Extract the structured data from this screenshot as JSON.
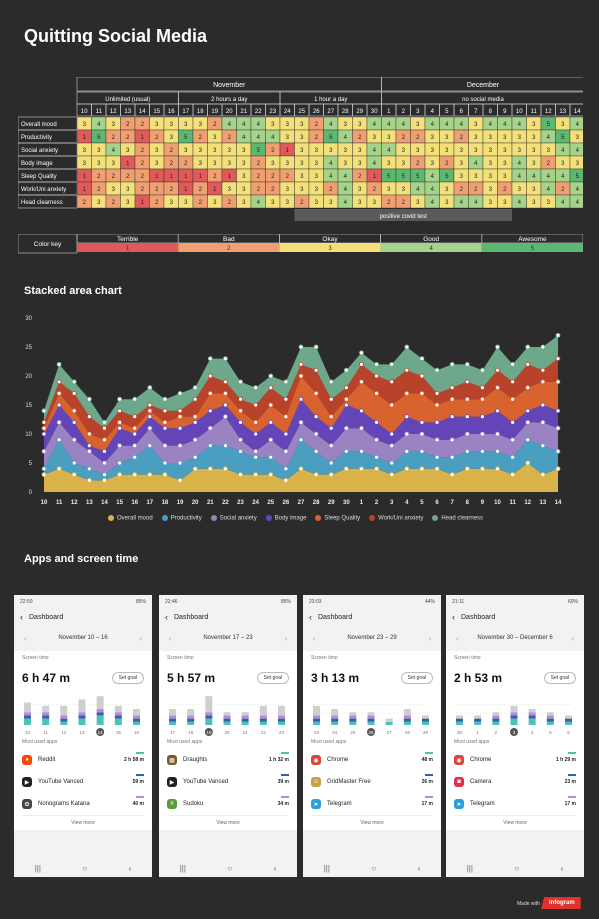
{
  "title": "Quitting Social Media",
  "table": {
    "months": [
      {
        "label": "November",
        "span": 21
      },
      {
        "label": "December",
        "span": 14
      }
    ],
    "periods": [
      {
        "label": "Unlimited (usual)",
        "span": 7
      },
      {
        "label": "2 hours a day",
        "span": 7
      },
      {
        "label": "1 hour a day",
        "span": 7
      },
      {
        "label": "no social media",
        "span": 14
      }
    ],
    "days": [
      "10",
      "11",
      "12",
      "13",
      "14",
      "15",
      "16",
      "17",
      "18",
      "19",
      "20",
      "21",
      "22",
      "23",
      "24",
      "25",
      "26",
      "27",
      "28",
      "29",
      "30",
      "1",
      "2",
      "3",
      "4",
      "5",
      "6",
      "7",
      "8",
      "9",
      "10",
      "11",
      "12",
      "13",
      "14"
    ],
    "rows": [
      {
        "label": "Overall mood",
        "values": [
          3,
          4,
          3,
          2,
          2,
          3,
          3,
          3,
          3,
          2,
          4,
          4,
          4,
          3,
          3,
          3,
          2,
          4,
          3,
          3,
          4,
          4,
          4,
          3,
          4,
          4,
          4,
          3,
          4,
          4,
          4,
          3,
          5,
          3,
          4
        ]
      },
      {
        "label": "Productivity",
        "values": [
          1,
          5,
          2,
          2,
          1,
          2,
          3,
          5,
          2,
          3,
          2,
          4,
          4,
          4,
          3,
          3,
          2,
          5,
          4,
          2,
          3,
          3,
          2,
          2,
          3,
          3,
          2,
          3,
          3,
          3,
          3,
          3,
          4,
          5,
          3
        ]
      },
      {
        "label": "Social anxiety",
        "values": [
          3,
          3,
          4,
          3,
          2,
          3,
          2,
          3,
          3,
          3,
          3,
          3,
          5,
          2,
          1,
          3,
          3,
          3,
          3,
          3,
          4,
          4,
          3,
          3,
          3,
          3,
          3,
          3,
          3,
          3,
          3,
          3,
          3,
          4,
          4
        ]
      },
      {
        "label": "Body image",
        "values": [
          3,
          3,
          3,
          1,
          2,
          3,
          2,
          2,
          3,
          3,
          3,
          3,
          2,
          3,
          3,
          3,
          3,
          4,
          3,
          3,
          4,
          3,
          3,
          2,
          3,
          2,
          3,
          4,
          3,
          3,
          4,
          3,
          2,
          3,
          3
        ]
      },
      {
        "label": "Sleep Quality",
        "values": [
          1,
          2,
          2,
          2,
          2,
          1,
          1,
          1,
          1,
          2,
          1,
          3,
          2,
          2,
          2,
          3,
          3,
          4,
          4,
          2,
          1,
          5,
          5,
          5,
          4,
          5,
          3,
          3,
          3,
          3,
          4,
          4,
          4,
          4,
          5
        ]
      },
      {
        "label": "Work/Uni anxiety",
        "values": [
          1,
          2,
          3,
          3,
          2,
          2,
          2,
          1,
          2,
          1,
          3,
          3,
          2,
          2,
          3,
          3,
          3,
          2,
          4,
          3,
          2,
          3,
          3,
          4,
          4,
          3,
          2,
          2,
          3,
          2,
          3,
          3,
          4,
          2,
          4
        ]
      },
      {
        "label": "Head clearness",
        "values": [
          2,
          3,
          2,
          3,
          1,
          2,
          3,
          3,
          2,
          3,
          2,
          3,
          4,
          3,
          3,
          2,
          3,
          3,
          4,
          3,
          3,
          2,
          2,
          3,
          4,
          3,
          4,
          4,
          3,
          3,
          4,
          3,
          3,
          4,
          4
        ]
      }
    ],
    "note": "positive covid test"
  },
  "color_key": {
    "title": "Color key",
    "items": [
      {
        "label": "Terrible",
        "value": "1",
        "color": "#e05a5a"
      },
      {
        "label": "Bad",
        "value": "2",
        "color": "#f0a070"
      },
      {
        "label": "Okay",
        "value": "3",
        "color": "#f3e07a"
      },
      {
        "label": "Good",
        "value": "4",
        "color": "#a6d38a"
      },
      {
        "label": "Awesome",
        "value": "5",
        "color": "#5cb870"
      }
    ]
  },
  "chart_title": "Stacked area chart",
  "chart_data": {
    "type": "area",
    "stacked": true,
    "x": [
      "10",
      "11",
      "12",
      "13",
      "14",
      "15",
      "16",
      "17",
      "18",
      "19",
      "20",
      "21",
      "22",
      "23",
      "24",
      "25",
      "26",
      "27",
      "28",
      "29",
      "30",
      "1",
      "2",
      "3",
      "4",
      "5",
      "6",
      "7",
      "8",
      "9",
      "10",
      "11",
      "12",
      "13",
      "14"
    ],
    "ylim": [
      0,
      30
    ],
    "yticks": [
      "0",
      "5",
      "10",
      "15",
      "20",
      "25",
      "30"
    ],
    "legend_position": "bottom",
    "series": [
      {
        "name": "Overall mood",
        "color": "#d9b24a",
        "values": [
          3,
          4,
          3,
          2,
          2,
          3,
          3,
          3,
          3,
          2,
          4,
          4,
          4,
          3,
          3,
          3,
          2,
          4,
          3,
          3,
          4,
          4,
          4,
          3,
          4,
          4,
          4,
          3,
          4,
          4,
          4,
          3,
          5,
          3,
          4
        ]
      },
      {
        "name": "Productivity",
        "color": "#4a9ec0",
        "values": [
          1,
          5,
          2,
          2,
          1,
          2,
          3,
          5,
          2,
          3,
          2,
          4,
          4,
          4,
          3,
          3,
          2,
          5,
          4,
          2,
          3,
          3,
          2,
          2,
          3,
          3,
          2,
          3,
          3,
          3,
          3,
          3,
          4,
          5,
          3
        ]
      },
      {
        "name": "Social anxiety",
        "color": "#9a83c2",
        "values": [
          3,
          3,
          4,
          3,
          2,
          3,
          2,
          3,
          3,
          3,
          3,
          3,
          5,
          2,
          1,
          3,
          3,
          3,
          3,
          3,
          4,
          4,
          3,
          3,
          3,
          3,
          3,
          3,
          3,
          3,
          3,
          3,
          3,
          4,
          4
        ]
      },
      {
        "name": "Body image",
        "color": "#6445b8",
        "values": [
          3,
          3,
          3,
          1,
          2,
          3,
          2,
          2,
          3,
          3,
          3,
          3,
          2,
          3,
          3,
          3,
          3,
          4,
          3,
          3,
          4,
          3,
          3,
          2,
          3,
          2,
          3,
          4,
          3,
          3,
          4,
          3,
          2,
          3,
          3
        ]
      },
      {
        "name": "Sleep Quality",
        "color": "#d9632e",
        "values": [
          1,
          2,
          2,
          2,
          2,
          1,
          1,
          1,
          1,
          2,
          1,
          3,
          2,
          2,
          2,
          3,
          3,
          4,
          4,
          2,
          1,
          5,
          5,
          5,
          4,
          5,
          3,
          3,
          3,
          3,
          4,
          4,
          4,
          4,
          5
        ]
      },
      {
        "name": "Work/Uni anxiety",
        "color": "#b8432a",
        "values": [
          1,
          2,
          3,
          3,
          2,
          2,
          2,
          1,
          2,
          1,
          3,
          3,
          2,
          2,
          3,
          3,
          3,
          2,
          4,
          3,
          2,
          3,
          3,
          4,
          4,
          3,
          2,
          2,
          3,
          2,
          3,
          3,
          4,
          2,
          4
        ]
      },
      {
        "name": "Head clearness",
        "color": "#6da88a",
        "values": [
          2,
          3,
          2,
          3,
          1,
          2,
          3,
          3,
          2,
          3,
          2,
          3,
          4,
          3,
          3,
          2,
          3,
          3,
          4,
          3,
          3,
          2,
          2,
          3,
          4,
          3,
          4,
          4,
          3,
          3,
          4,
          3,
          3,
          4,
          4
        ]
      }
    ]
  },
  "apps_title": "Apps and screen time",
  "phones": [
    {
      "status_time": "22:50",
      "status_right": "85%",
      "header": "Dashboard",
      "week": "November 10 – 16",
      "screen_time_label": "Screen time",
      "total": "6 h 47 m",
      "set_goal": "Set goal",
      "days": [
        "10",
        "11",
        "12",
        "13",
        "14",
        "15",
        "16"
      ],
      "selected_day": 4,
      "most_used_label": "Most used apps",
      "view_more": "View more",
      "bars": [
        [
          2,
          1,
          1,
          3
        ],
        [
          2,
          1,
          1,
          2
        ],
        [
          1,
          1,
          1,
          3
        ],
        [
          2,
          1,
          1,
          4
        ],
        [
          3,
          1,
          1,
          4
        ],
        [
          2,
          1,
          1,
          2
        ],
        [
          1,
          1,
          1,
          2
        ]
      ],
      "apps": [
        {
          "name": "Reddit",
          "time": "2 h 58 m",
          "icon_color": "#ff4500",
          "icon": "reddit-icon",
          "glyph": "●"
        },
        {
          "name": "YouTube Vanced",
          "time": "59 m",
          "icon_color": "#222",
          "icon": "youtube-vanced-icon",
          "glyph": "▶"
        },
        {
          "name": "Nonograms Katana",
          "time": "40 m",
          "icon_color": "#444",
          "icon": "nonograms-icon",
          "glyph": "✿"
        }
      ]
    },
    {
      "status_time": "22:46",
      "status_right": "85%",
      "header": "Dashboard",
      "week": "November 17 – 23",
      "screen_time_label": "Screen time",
      "total": "5 h 57 m",
      "set_goal": "Set goal",
      "days": [
        "17",
        "18",
        "19",
        "20",
        "21",
        "22",
        "23"
      ],
      "selected_day": 2,
      "most_used_label": "Most used apps",
      "view_more": "View more",
      "bars": [
        [
          1,
          1,
          1,
          2
        ],
        [
          1,
          1,
          1,
          2
        ],
        [
          2,
          1,
          1,
          5
        ],
        [
          1,
          1,
          1,
          1
        ],
        [
          1,
          1,
          1,
          1
        ],
        [
          1,
          1,
          1,
          3
        ],
        [
          1,
          1,
          1,
          3
        ]
      ],
      "apps": [
        {
          "name": "Draughts",
          "time": "1 h 32 m",
          "icon_color": "#7a5a2a",
          "icon": "draughts-icon",
          "glyph": "▦"
        },
        {
          "name": "YouTube Vanced",
          "time": "39 m",
          "icon_color": "#222",
          "icon": "youtube-vanced-icon",
          "glyph": "▶"
        },
        {
          "name": "Sudoku",
          "time": "34 m",
          "icon_color": "#5a9a3a",
          "icon": "sudoku-icon",
          "glyph": "#"
        }
      ]
    },
    {
      "status_time": "23:03",
      "status_right": "44%",
      "header": "Dashboard",
      "week": "November 23 – 29",
      "screen_time_label": "Screen time",
      "total": "3 h 13 m",
      "set_goal": "Set goal",
      "days": [
        "23",
        "24",
        "25",
        "26",
        "27",
        "28",
        "29"
      ],
      "selected_day": 3,
      "most_used_label": "Most used apps",
      "view_more": "View more",
      "bars": [
        [
          1,
          1,
          1,
          3
        ],
        [
          1,
          1,
          1,
          2
        ],
        [
          1,
          1,
          1,
          1
        ],
        [
          1,
          1,
          1,
          1
        ],
        [
          1,
          0,
          0,
          1
        ],
        [
          1,
          1,
          1,
          2
        ],
        [
          1,
          1,
          0,
          1
        ]
      ],
      "apps": [
        {
          "name": "Chrome",
          "time": "48 m",
          "icon_color": "#db4437",
          "icon": "chrome-icon",
          "glyph": "◉"
        },
        {
          "name": "GridMaster Free",
          "time": "26 m",
          "icon_color": "#c8a040",
          "icon": "gridmaster-icon",
          "glyph": "☺"
        },
        {
          "name": "Telegram",
          "time": "17 m",
          "icon_color": "#2aa0da",
          "icon": "telegram-icon",
          "glyph": "➤"
        }
      ]
    },
    {
      "status_time": "21:11",
      "status_right": "60%",
      "header": "Dashboard",
      "week": "November 30 – December 6",
      "screen_time_label": "Screen time",
      "total": "2 h 53 m",
      "set_goal": "Set goal",
      "days": [
        "30",
        "1",
        "2",
        "3",
        "4",
        "5",
        "6"
      ],
      "selected_day": 3,
      "most_used_label": "Most used apps",
      "view_more": "View more",
      "bars": [
        [
          1,
          1,
          0,
          1
        ],
        [
          1,
          1,
          0,
          1
        ],
        [
          1,
          1,
          1,
          1
        ],
        [
          2,
          1,
          1,
          2
        ],
        [
          2,
          1,
          1,
          1
        ],
        [
          1,
          1,
          1,
          1
        ],
        [
          1,
          1,
          0,
          1
        ]
      ],
      "apps": [
        {
          "name": "Chrome",
          "time": "1 h 29 m",
          "icon_color": "#db4437",
          "icon": "chrome-icon",
          "glyph": "◉"
        },
        {
          "name": "Camera",
          "time": "23 m",
          "icon_color": "#e0304a",
          "icon": "camera-icon",
          "glyph": "◙"
        },
        {
          "name": "Telegram",
          "time": "17 m",
          "icon_color": "#2aa0da",
          "icon": "telegram-icon",
          "glyph": "➤"
        }
      ]
    }
  ],
  "footer": {
    "made_with": "Made with",
    "brand": "infogram"
  }
}
